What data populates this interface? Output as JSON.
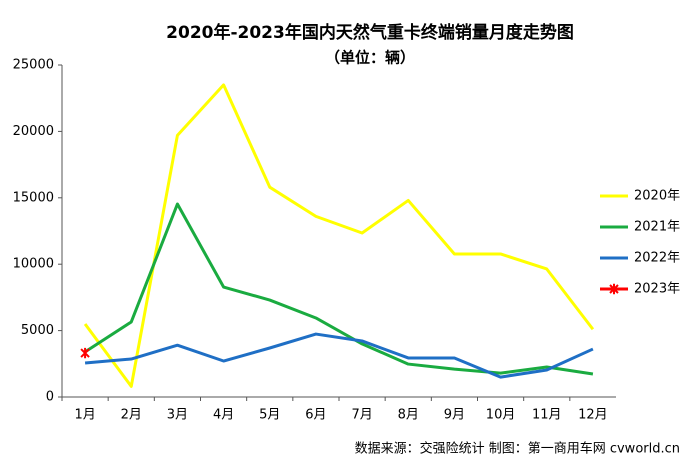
{
  "chart_data": {
    "type": "line",
    "title": "2020年-2023年国内天然气重卡终端销量月度走势图",
    "subtitle": "（单位：辆）",
    "source": "数据来源：交强险统计   制图：第一商用车网 cvworld.cn",
    "categories": [
      "1月",
      "2月",
      "3月",
      "4月",
      "5月",
      "6月",
      "7月",
      "8月",
      "9月",
      "10月",
      "11月",
      "12月"
    ],
    "series": [
      {
        "name": "2020年",
        "color": "#ffff00",
        "values": [
          5500,
          800,
          19700,
          23500,
          15800,
          13600,
          12350,
          14800,
          10770,
          10770,
          9640,
          5100
        ]
      },
      {
        "name": "2021年",
        "color": "#1aab40",
        "values": [
          3400,
          5650,
          14530,
          8280,
          7300,
          5950,
          4000,
          2480,
          2100,
          1800,
          2260,
          1730
        ]
      },
      {
        "name": "2022年",
        "color": "#1f6fc5",
        "values": [
          2560,
          2860,
          3900,
          2710,
          3690,
          4740,
          4220,
          2940,
          2940,
          1500,
          2030,
          3610
        ]
      },
      {
        "name": "2023年",
        "color": "#ff0000",
        "marker": "star",
        "values": [
          3310,
          null,
          null,
          null,
          null,
          null,
          null,
          null,
          null,
          null,
          null,
          null
        ]
      }
    ],
    "ylim": [
      0,
      25000
    ],
    "yticks": [
      0,
      5000,
      10000,
      15000,
      20000,
      25000
    ],
    "grid": false,
    "legend": "right"
  }
}
